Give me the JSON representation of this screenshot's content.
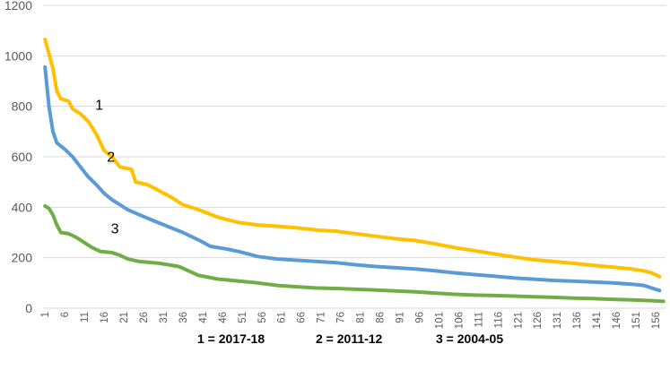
{
  "chart_data": {
    "type": "line",
    "title": "",
    "xlabel": "",
    "ylabel": "",
    "ylim": [
      0,
      1200
    ],
    "yticks": [
      0,
      200,
      400,
      600,
      800,
      1000,
      1200
    ],
    "x_tick_labels": [
      "1",
      "6",
      "11",
      "16",
      "21",
      "26",
      "31",
      "36",
      "41",
      "46",
      "51",
      "56",
      "61",
      "66",
      "71",
      "76",
      "81",
      "86",
      "91",
      "96",
      "101",
      "106",
      "111",
      "116",
      "121",
      "126",
      "131",
      "136",
      "141",
      "146",
      "151",
      "156"
    ],
    "x_count": 158,
    "grid": "horizontal",
    "series": [
      {
        "name": "1",
        "color": "#FFC000",
        "points": [
          [
            1,
            1065
          ],
          [
            3,
            950
          ],
          [
            4,
            860
          ],
          [
            5,
            830
          ],
          [
            7,
            820
          ],
          [
            8,
            790
          ],
          [
            10,
            770
          ],
          [
            12,
            740
          ],
          [
            14,
            690
          ],
          [
            16,
            625
          ],
          [
            18,
            600
          ],
          [
            20,
            560
          ],
          [
            23,
            550
          ],
          [
            24,
            500
          ],
          [
            27,
            490
          ],
          [
            30,
            465
          ],
          [
            33,
            440
          ],
          [
            36,
            410
          ],
          [
            40,
            390
          ],
          [
            45,
            360
          ],
          [
            50,
            340
          ],
          [
            55,
            330
          ],
          [
            60,
            325
          ],
          [
            65,
            318
          ],
          [
            70,
            310
          ],
          [
            75,
            305
          ],
          [
            80,
            295
          ],
          [
            85,
            285
          ],
          [
            90,
            275
          ],
          [
            95,
            268
          ],
          [
            100,
            255
          ],
          [
            105,
            240
          ],
          [
            110,
            228
          ],
          [
            115,
            215
          ],
          [
            120,
            203
          ],
          [
            125,
            192
          ],
          [
            130,
            185
          ],
          [
            135,
            178
          ],
          [
            140,
            170
          ],
          [
            145,
            163
          ],
          [
            150,
            155
          ],
          [
            153,
            148
          ],
          [
            155,
            140
          ],
          [
            157,
            125
          ]
        ],
        "label": "1"
      },
      {
        "name": "2",
        "color": "#5B9BD5",
        "points": [
          [
            1,
            955
          ],
          [
            2,
            800
          ],
          [
            3,
            700
          ],
          [
            4,
            655
          ],
          [
            6,
            630
          ],
          [
            8,
            600
          ],
          [
            10,
            560
          ],
          [
            12,
            520
          ],
          [
            14,
            490
          ],
          [
            16,
            455
          ],
          [
            18,
            430
          ],
          [
            20,
            410
          ],
          [
            22,
            390
          ],
          [
            25,
            370
          ],
          [
            28,
            350
          ],
          [
            32,
            325
          ],
          [
            36,
            300
          ],
          [
            40,
            270
          ],
          [
            43,
            245
          ],
          [
            47,
            235
          ],
          [
            50,
            225
          ],
          [
            55,
            205
          ],
          [
            60,
            195
          ],
          [
            65,
            190
          ],
          [
            70,
            185
          ],
          [
            75,
            180
          ],
          [
            80,
            172
          ],
          [
            85,
            165
          ],
          [
            90,
            160
          ],
          [
            95,
            155
          ],
          [
            100,
            148
          ],
          [
            105,
            140
          ],
          [
            110,
            133
          ],
          [
            115,
            127
          ],
          [
            120,
            120
          ],
          [
            125,
            115
          ],
          [
            130,
            110
          ],
          [
            135,
            107
          ],
          [
            140,
            104
          ],
          [
            145,
            100
          ],
          [
            150,
            95
          ],
          [
            153,
            90
          ],
          [
            155,
            80
          ],
          [
            157,
            70
          ]
        ],
        "label": "2"
      },
      {
        "name": "3",
        "color": "#70AD47",
        "points": [
          [
            1,
            405
          ],
          [
            2,
            395
          ],
          [
            3,
            370
          ],
          [
            4,
            330
          ],
          [
            5,
            300
          ],
          [
            7,
            295
          ],
          [
            9,
            280
          ],
          [
            11,
            260
          ],
          [
            13,
            240
          ],
          [
            15,
            225
          ],
          [
            18,
            220
          ],
          [
            20,
            210
          ],
          [
            22,
            195
          ],
          [
            25,
            185
          ],
          [
            30,
            178
          ],
          [
            35,
            165
          ],
          [
            40,
            130
          ],
          [
            45,
            115
          ],
          [
            50,
            108
          ],
          [
            55,
            100
          ],
          [
            60,
            90
          ],
          [
            65,
            85
          ],
          [
            70,
            80
          ],
          [
            75,
            78
          ],
          [
            80,
            75
          ],
          [
            85,
            72
          ],
          [
            90,
            68
          ],
          [
            95,
            65
          ],
          [
            100,
            60
          ],
          [
            105,
            55
          ],
          [
            110,
            52
          ],
          [
            115,
            50
          ],
          [
            120,
            48
          ],
          [
            125,
            45
          ],
          [
            130,
            43
          ],
          [
            135,
            40
          ],
          [
            140,
            38
          ],
          [
            145,
            35
          ],
          [
            150,
            33
          ],
          [
            155,
            30
          ],
          [
            158,
            27
          ]
        ],
        "label": "3"
      }
    ],
    "legend": [
      "1 = 2017-18",
      "2 = 2011-12",
      "3 = 2004-05"
    ],
    "legend_position": "bottom"
  }
}
